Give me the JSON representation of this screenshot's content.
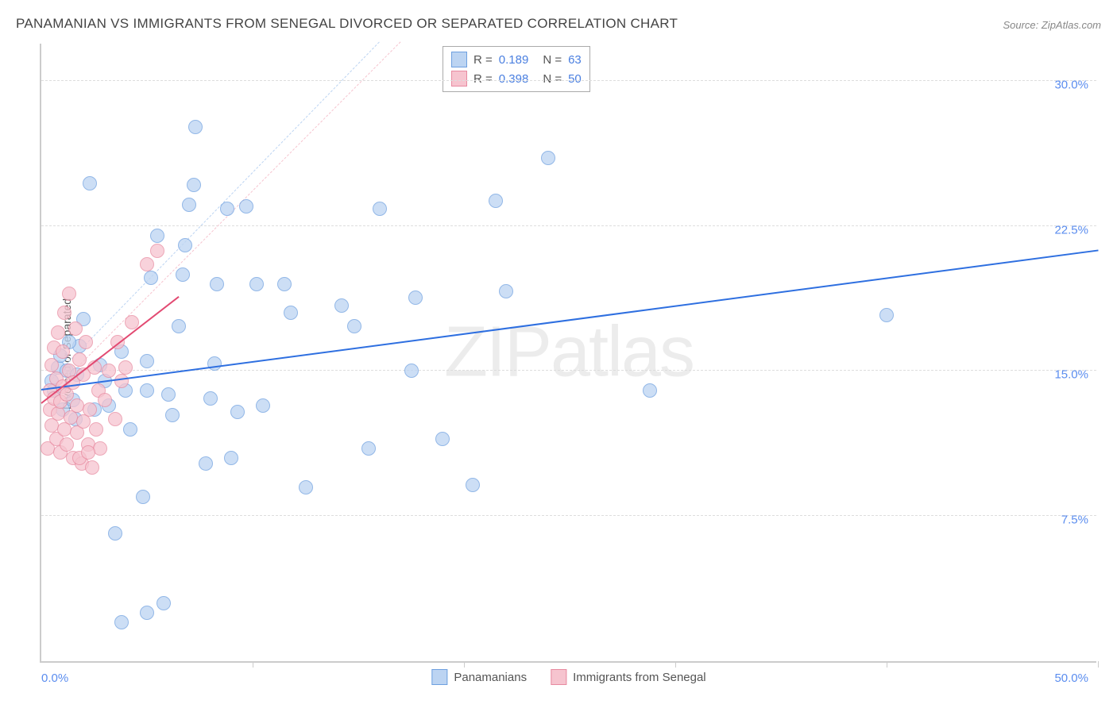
{
  "title": "PANAMANIAN VS IMMIGRANTS FROM SENEGAL DIVORCED OR SEPARATED CORRELATION CHART",
  "source": "Source: ZipAtlas.com",
  "ylabel": "Divorced or Separated",
  "watermark_a": "ZIP",
  "watermark_b": "atlas",
  "chart": {
    "type": "scatter",
    "background_color": "#ffffff",
    "grid_color": "#dddddd",
    "axis_color": "#cccccc",
    "label_color": "#5b8def",
    "xlim": [
      0,
      50
    ],
    "ylim": [
      0,
      32
    ],
    "x_origin_label": "0.0%",
    "x_max_label": "50.0%",
    "yticks": [
      {
        "v": 7.5,
        "label": "7.5%"
      },
      {
        "v": 15.0,
        "label": "15.0%"
      },
      {
        "v": 22.5,
        "label": "22.5%"
      },
      {
        "v": 30.0,
        "label": "30.0%"
      }
    ],
    "xtick_positions": [
      10,
      20,
      30,
      40,
      50
    ],
    "marker_radius": 8,
    "marker_stroke_width": 1,
    "series": [
      {
        "key": "panamanians",
        "label": "Panamanians",
        "fill": "#bcd4f2",
        "stroke": "#6ea0e0",
        "fill_opacity": 0.75,
        "trend": {
          "x1": 0,
          "y1": 14.0,
          "x2": 50,
          "y2": 21.2,
          "color": "#2e6fe0",
          "width": 2,
          "dash": "none"
        },
        "diag": {
          "x1": 0,
          "y1": 14.0,
          "x2": 16,
          "y2": 32,
          "color": "#bcd4f2",
          "width": 1,
          "dash": "6,6"
        },
        "points": [
          [
            0.5,
            14.5
          ],
          [
            0.8,
            15.2
          ],
          [
            0.6,
            14.0
          ],
          [
            1.0,
            13.0
          ],
          [
            1.2,
            15.0
          ],
          [
            1.5,
            13.5
          ],
          [
            1.7,
            14.8
          ],
          [
            1.8,
            16.3
          ],
          [
            2.0,
            17.7
          ],
          [
            2.3,
            24.7
          ],
          [
            3.5,
            6.6
          ],
          [
            3.8,
            2.0
          ],
          [
            4.8,
            8.5
          ],
          [
            5.0,
            2.5
          ],
          [
            5.0,
            14.0
          ],
          [
            5.0,
            15.5
          ],
          [
            5.2,
            19.8
          ],
          [
            5.8,
            3.0
          ],
          [
            6.0,
            13.8
          ],
          [
            6.2,
            12.7
          ],
          [
            6.5,
            17.3
          ],
          [
            6.7,
            20.0
          ],
          [
            7.0,
            23.6
          ],
          [
            7.2,
            24.6
          ],
          [
            7.3,
            27.6
          ],
          [
            7.8,
            10.2
          ],
          [
            8.0,
            13.6
          ],
          [
            8.2,
            15.4
          ],
          [
            8.3,
            19.5
          ],
          [
            8.8,
            23.4
          ],
          [
            9.0,
            10.5
          ],
          [
            9.3,
            12.9
          ],
          [
            9.7,
            23.5
          ],
          [
            10.2,
            19.5
          ],
          [
            10.5,
            13.2
          ],
          [
            11.5,
            19.5
          ],
          [
            11.8,
            18.0
          ],
          [
            12.5,
            9.0
          ],
          [
            14.2,
            18.4
          ],
          [
            14.8,
            17.3
          ],
          [
            15.5,
            11.0
          ],
          [
            16.0,
            23.4
          ],
          [
            17.5,
            15.0
          ],
          [
            17.7,
            18.8
          ],
          [
            19.0,
            11.5
          ],
          [
            20.4,
            9.1
          ],
          [
            21.5,
            23.8
          ],
          [
            22.0,
            19.1
          ],
          [
            24.0,
            26.0
          ],
          [
            28.8,
            14.0
          ],
          [
            40.0,
            17.9
          ],
          [
            3.0,
            14.5
          ],
          [
            4.0,
            14.0
          ],
          [
            2.5,
            13.0
          ],
          [
            1.3,
            16.5
          ],
          [
            1.6,
            12.5
          ],
          [
            0.9,
            15.8
          ],
          [
            2.8,
            15.3
          ],
          [
            3.2,
            13.2
          ],
          [
            4.2,
            12.0
          ],
          [
            5.5,
            22.0
          ],
          [
            6.8,
            21.5
          ],
          [
            3.8,
            16.0
          ]
        ]
      },
      {
        "key": "senegal",
        "label": "Immigrants from Senegal",
        "fill": "#f6c4cf",
        "stroke": "#e88aa0",
        "fill_opacity": 0.75,
        "trend": {
          "x1": 0,
          "y1": 13.3,
          "x2": 6.5,
          "y2": 18.8,
          "color": "#e24a72",
          "width": 2,
          "dash": "none"
        },
        "diag": {
          "x1": 0,
          "y1": 13.3,
          "x2": 17,
          "y2": 32,
          "color": "#f6c4cf",
          "width": 1,
          "dash": "6,6"
        },
        "points": [
          [
            0.3,
            11.0
          ],
          [
            0.4,
            13.0
          ],
          [
            0.4,
            14.0
          ],
          [
            0.5,
            12.2
          ],
          [
            0.5,
            15.3
          ],
          [
            0.6,
            13.6
          ],
          [
            0.6,
            16.2
          ],
          [
            0.7,
            11.5
          ],
          [
            0.7,
            14.6
          ],
          [
            0.8,
            12.8
          ],
          [
            0.8,
            17.0
          ],
          [
            0.9,
            10.8
          ],
          [
            0.9,
            13.4
          ],
          [
            1.0,
            14.2
          ],
          [
            1.0,
            16.0
          ],
          [
            1.1,
            12.0
          ],
          [
            1.1,
            18.0
          ],
          [
            1.2,
            11.2
          ],
          [
            1.2,
            13.8
          ],
          [
            1.3,
            15.0
          ],
          [
            1.3,
            19.0
          ],
          [
            1.4,
            12.6
          ],
          [
            1.5,
            10.5
          ],
          [
            1.5,
            14.4
          ],
          [
            1.6,
            17.2
          ],
          [
            1.7,
            11.8
          ],
          [
            1.7,
            13.2
          ],
          [
            1.8,
            15.6
          ],
          [
            1.9,
            10.2
          ],
          [
            2.0,
            12.4
          ],
          [
            2.0,
            14.8
          ],
          [
            2.1,
            16.5
          ],
          [
            2.2,
            11.2
          ],
          [
            2.3,
            13.0
          ],
          [
            2.4,
            10.0
          ],
          [
            2.5,
            15.2
          ],
          [
            2.6,
            12.0
          ],
          [
            2.7,
            14.0
          ],
          [
            2.8,
            11.0
          ],
          [
            3.0,
            13.5
          ],
          [
            3.2,
            15.0
          ],
          [
            3.5,
            12.5
          ],
          [
            3.6,
            16.5
          ],
          [
            3.8,
            14.5
          ],
          [
            4.0,
            15.2
          ],
          [
            4.3,
            17.5
          ],
          [
            5.0,
            20.5
          ],
          [
            5.5,
            21.2
          ],
          [
            1.8,
            10.5
          ],
          [
            2.2,
            10.8
          ]
        ]
      }
    ],
    "info_box": {
      "rows": [
        {
          "swatch_fill": "#bcd4f2",
          "swatch_stroke": "#6ea0e0",
          "r": "0.189",
          "n": "63"
        },
        {
          "swatch_fill": "#f6c4cf",
          "swatch_stroke": "#e88aa0",
          "r": "0.398",
          "n": "50"
        }
      ],
      "r_label": "R  =",
      "n_label": "N  ="
    }
  }
}
